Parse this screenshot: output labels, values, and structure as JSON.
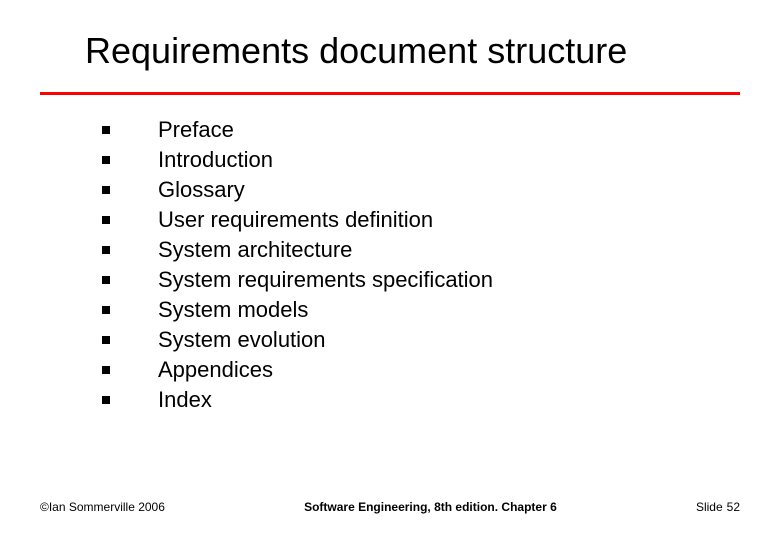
{
  "title": "Requirements document structure",
  "rule_color": "#ff0000",
  "text_color": "#000000",
  "background_color": "#ffffff",
  "title_fontsize": 36,
  "body_fontsize": 22,
  "footer_fontsize": 12,
  "bullets": {
    "items": [
      "Preface",
      "Introduction",
      "Glossary",
      "User requirements definition",
      "System architecture",
      "System requirements specification",
      "System models",
      "System evolution",
      "Appendices",
      "Index"
    ]
  },
  "footer": {
    "left": "©Ian Sommerville 2006",
    "center": "Software Engineering, 8th edition. Chapter 6",
    "right_label": "Slide",
    "slide_number": "52"
  }
}
